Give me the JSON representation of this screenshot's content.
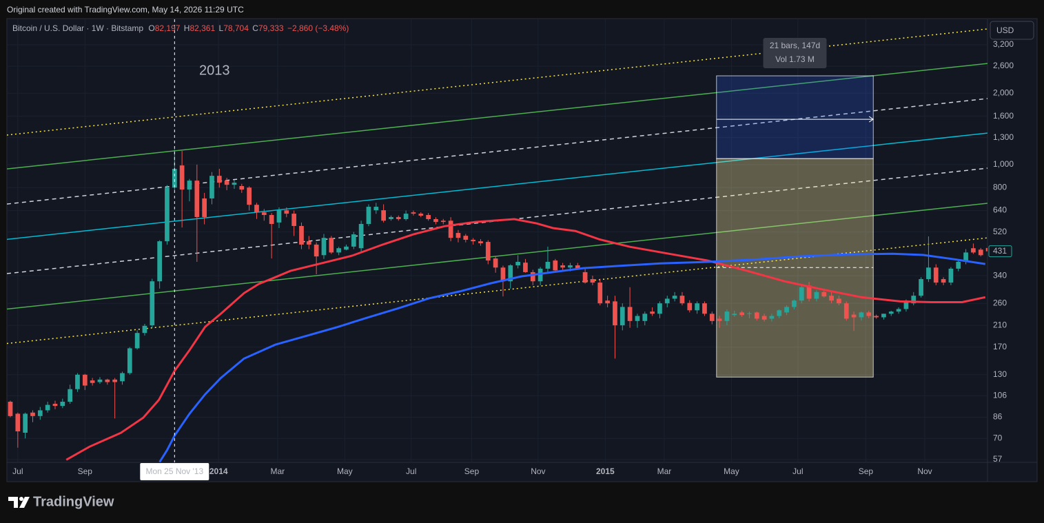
{
  "caption": "Original created with TradingView.com, May 14, 2026 11:29 UTC",
  "logo": "TradingView",
  "chart_data": {
    "type": "candlestick",
    "symbol": "Bitcoin / U.S. Dollar · 1W · Bitstamp",
    "ohlc_labels": [
      "O",
      "H",
      "L",
      "C"
    ],
    "ohlc_values": [
      "82,197",
      "82,361",
      "78,704",
      "79,333"
    ],
    "change": "−2,860 (−3.48%)",
    "currency": "USD",
    "annotation": "2013",
    "log_scale": true,
    "grid": true,
    "up_color": "#26a69a",
    "down_color": "#ef5350",
    "xlim": [
      -0.46,
      130.9
    ],
    "ylim": [
      55.5,
      4100
    ],
    "yticks": [
      57,
      70,
      86,
      106,
      130,
      170,
      210,
      260,
      340,
      520,
      640,
      800,
      {
        "value": 1000,
        "label": "1,000"
      },
      {
        "value": 1300,
        "label": "1,300"
      },
      {
        "value": 1600,
        "label": "1,600"
      },
      {
        "value": 2000,
        "label": "2,000"
      },
      {
        "value": 2600,
        "label": "2,600"
      },
      {
        "value": 3200,
        "label": "3,200"
      }
    ],
    "xticks": [
      {
        "value": 1.0,
        "label": "Jul"
      },
      {
        "value": 10.0,
        "label": "Sep"
      },
      {
        "value": 27.9,
        "label": "2014"
      },
      {
        "value": 35.8,
        "label": "Mar"
      },
      {
        "value": 44.8,
        "label": "May"
      },
      {
        "value": 53.7,
        "label": "Jul"
      },
      {
        "value": 61.8,
        "label": "Sep"
      },
      {
        "value": 70.7,
        "label": "Nov"
      },
      {
        "value": 79.7,
        "label": "2015"
      },
      {
        "value": 87.6,
        "label": "Mar"
      },
      {
        "value": 96.6,
        "label": "May"
      },
      {
        "value": 105.5,
        "label": "Jul"
      },
      {
        "value": 114.6,
        "label": "Sep"
      },
      {
        "value": 122.5,
        "label": "Nov"
      }
    ],
    "open": [
      100,
      89,
      74,
      90,
      87,
      92,
      98,
      96,
      100,
      113,
      130,
      123,
      121,
      124,
      124,
      122,
      132,
      168,
      195,
      210,
      322,
      475,
      800,
      992,
      785,
      856,
      720,
      720,
      897,
      856,
      822,
      812,
      800,
      677,
      629,
      613,
      570,
      642,
      621,
      551,
      475,
      460,
      415,
      491,
      426,
      438,
      451,
      444,
      562,
      642,
      642,
      589,
      601,
      589,
      629,
      621,
      613,
      589,
      580,
      580,
      515,
      501,
      482,
      475,
      472,
      402,
      368,
      322,
      376,
      386,
      352,
      322,
      364,
      394,
      376,
      368,
      376,
      352,
      329,
      318,
      267,
      265,
      210,
      251,
      219,
      219,
      240,
      235,
      260,
      272,
      280,
      261,
      243,
      260,
      235,
      224,
      219,
      232,
      238,
      235,
      238,
      230,
      224,
      230,
      238,
      251,
      267,
      309,
      272,
      290,
      280,
      272,
      260,
      233,
      227,
      238,
      230,
      227,
      235,
      240,
      246,
      260,
      280,
      329,
      368,
      329,
      318,
      364,
      389,
      444,
      438,
      445
    ],
    "high": [
      101,
      90,
      90,
      92,
      95,
      100,
      101,
      103,
      118,
      132,
      131,
      126,
      127,
      125,
      126,
      134,
      170,
      200,
      213,
      330,
      480,
      820,
      1160,
      1142,
      870,
      1000,
      760,
      930,
      960,
      880,
      860,
      830,
      810,
      690,
      650,
      625,
      660,
      660,
      640,
      570,
      500,
      470,
      510,
      500,
      450,
      460,
      520,
      580,
      680,
      690,
      680,
      610,
      610,
      640,
      640,
      630,
      625,
      600,
      590,
      600,
      530,
      510,
      490,
      485,
      480,
      410,
      375,
      380,
      415,
      400,
      360,
      370,
      451,
      400,
      385,
      385,
      385,
      365,
      340,
      330,
      280,
      280,
      260,
      304,
      235,
      240,
      250,
      265,
      280,
      290,
      290,
      268,
      265,
      265,
      240,
      230,
      245,
      242,
      242,
      240,
      240,
      235,
      235,
      245,
      255,
      270,
      310,
      320,
      295,
      300,
      290,
      280,
      265,
      240,
      240,
      242,
      233,
      235,
      242,
      250,
      270,
      290,
      335,
      498,
      380,
      335,
      370,
      395,
      440,
      465,
      445,
      450
    ],
    "low": [
      86,
      64,
      70,
      82,
      84,
      90,
      93,
      94,
      98,
      110,
      112,
      117,
      119,
      118,
      85,
      118,
      130,
      166,
      190,
      205,
      300,
      460,
      780,
      543,
      700,
      389,
      560,
      680,
      800,
      780,
      790,
      760,
      640,
      590,
      580,
      402,
      540,
      600,
      500,
      440,
      440,
      345,
      400,
      420,
      415,
      435,
      440,
      430,
      550,
      620,
      570,
      580,
      580,
      580,
      610,
      600,
      580,
      560,
      560,
      475,
      470,
      470,
      460,
      455,
      380,
      350,
      278,
      300,
      365,
      350,
      310,
      310,
      350,
      350,
      360,
      355,
      360,
      315,
      310,
      255,
      250,
      152,
      200,
      205,
      205,
      210,
      230,
      225,
      250,
      265,
      255,
      238,
      235,
      230,
      212,
      205,
      210,
      228,
      228,
      225,
      220,
      218,
      218,
      225,
      232,
      245,
      260,
      265,
      265,
      275,
      260,
      255,
      220,
      199,
      220,
      225,
      224,
      222,
      230,
      235,
      240,
      255,
      275,
      320,
      310,
      310,
      310,
      355,
      380,
      420,
      410,
      415
    ],
    "close": [
      87,
      75,
      89,
      87,
      92,
      97,
      96,
      100,
      113,
      130,
      117,
      120,
      124,
      121,
      121,
      132,
      168,
      195,
      209,
      322,
      475,
      800,
      959,
      785,
      856,
      601,
      601,
      897,
      839,
      822,
      839,
      785,
      677,
      629,
      613,
      562,
      642,
      621,
      551,
      460,
      460,
      410,
      491,
      426,
      444,
      451,
      508,
      562,
      664,
      664,
      580,
      601,
      589,
      621,
      621,
      609,
      589,
      573,
      573,
      491,
      491,
      482,
      475,
      466,
      394,
      368,
      322,
      376,
      389,
      352,
      322,
      364,
      389,
      358,
      368,
      376,
      364,
      318,
      318,
      260,
      260,
      210,
      251,
      219,
      230,
      235,
      235,
      260,
      272,
      280,
      260,
      243,
      260,
      235,
      219,
      219,
      240,
      235,
      232,
      236,
      224,
      222,
      230,
      243,
      251,
      267,
      304,
      272,
      290,
      278,
      267,
      260,
      224,
      227,
      238,
      230,
      227,
      235,
      240,
      246,
      267,
      280,
      329,
      368,
      318,
      318,
      364,
      389,
      426,
      426,
      415,
      431
    ],
    "moving_averages": [
      {
        "color": "#f23645",
        "x": [
          7.5,
          10.6,
          14.8,
          17.8,
          19.9,
          22.0,
          24.0,
          26.1,
          28.2,
          31.3,
          33.3,
          35.5,
          37.5,
          41.6,
          45.8,
          49.9,
          54.0,
          58.2,
          62.3,
          67.5,
          70.5,
          72.7,
          75.7,
          78.9,
          83.0,
          88.2,
          93.4,
          98.5,
          103.7,
          108.9,
          114.0,
          119.2,
          123.4,
          127.5,
          130.6
        ],
        "values": [
          56.9,
          64.6,
          73.9,
          85.6,
          101.9,
          134.9,
          165,
          207,
          235,
          287,
          314,
          335,
          356,
          383,
          413,
          460,
          508,
          550,
          573,
          589,
          565,
          540,
          525,
          484,
          450,
          421,
          394,
          358,
          322,
          297,
          276,
          265,
          263,
          263,
          276
        ]
      },
      {
        "color": "#2962ff",
        "x": [
          20.0,
          21.0,
          22.0,
          24.0,
          26.1,
          28.2,
          31.3,
          35.5,
          39.5,
          43.7,
          47.8,
          52.0,
          56.1,
          60.2,
          64.4,
          68.5,
          72.7,
          76.8,
          80.9,
          87.1,
          93.4,
          99.5,
          105.7,
          111.9,
          118.2,
          122.3,
          126.4,
          130.6
        ],
        "values": [
          55.7,
          62.5,
          71.9,
          89,
          107.5,
          126,
          152,
          174,
          189,
          206,
          226,
          248,
          273,
          292,
          316,
          338,
          352,
          366,
          373,
          383,
          389,
          397,
          410,
          418,
          421,
          416,
          399,
          381
        ]
      }
    ],
    "drawings": [
      {
        "color": "#ffeb3b",
        "style": "dotted",
        "x": [
          -0.46,
          130.9
        ],
        "values": [
          1332,
          3733
        ]
      },
      {
        "color": "#4caf50",
        "style": "solid",
        "x": [
          -0.46,
          130.9
        ],
        "values": [
          959,
          2670
        ]
      },
      {
        "color": "#d1d4dc",
        "style": "dashed",
        "x": [
          -0.46,
          130.9
        ],
        "values": [
          682,
          1899
        ]
      },
      {
        "color": "#00bcd4",
        "style": "solid",
        "x": [
          -0.46,
          130.9
        ],
        "values": [
          484,
          1358
        ]
      },
      {
        "color": "#d1d4dc",
        "style": "dashed",
        "x": [
          -0.46,
          130.9
        ],
        "values": [
          347,
          966
        ]
      },
      {
        "color": "#4caf50",
        "style": "solid",
        "x": [
          -0.46,
          130.9
        ],
        "values": [
          246,
          687
        ]
      },
      {
        "color": "#ffeb3b",
        "style": "dotted",
        "x": [
          -0.46,
          130.9
        ],
        "values": [
          176,
          491
        ]
      }
    ],
    "range": {
      "x": [
        94.6,
        115.6
      ],
      "top": 2368,
      "mid": 1060,
      "bottom": 127,
      "arrow": 1553,
      "level": 368,
      "tooltip": [
        "21 bars, 147d",
        "Vol 1.73 M"
      ]
    },
    "crosshair": {
      "x": 22,
      "label": "Mon 25 Nov '13"
    }
  }
}
